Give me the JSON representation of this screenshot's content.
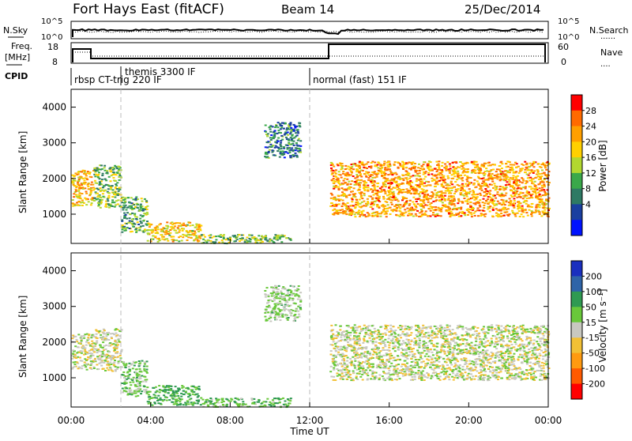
{
  "header": {
    "station": "Fort Hays East (fitACF)",
    "beam": "Beam 14",
    "date": "25/Dec/2014"
  },
  "labels": {
    "nsky": "N.Sky",
    "nsearch": "N.Search",
    "freq": "Freq.",
    "mhz": "[MHz]",
    "nave": "Nave",
    "cpid": "CPID",
    "legend_dots": "......",
    "legend_dots_short": "...."
  },
  "noise_ticks_left": [
    "10^5",
    "10^0"
  ],
  "noise_ticks_right": [
    "10^5",
    "10^0"
  ],
  "freq_ticks": [
    "18",
    "8"
  ],
  "nave_ticks": [
    "60",
    "0"
  ],
  "cpid_segments": [
    {
      "label": "rbsp CT-trig 220 IF",
      "start_hr": 0.0
    },
    {
      "label": "themis 3300 IF",
      "start_hr": 2.5
    },
    {
      "label": "normal (fast) 151 IF",
      "start_hr": 12.0
    }
  ],
  "time_ticks": [
    "00:00",
    "04:00",
    "08:00",
    "12:00",
    "16:00",
    "20:00",
    "00:00"
  ],
  "xlabel": "Time UT",
  "ylabel": "Slant Range [km]",
  "range_ticks": [
    "4000",
    "3000",
    "2000",
    "1000"
  ],
  "power_colorbar": {
    "label": "Power [dB]",
    "ticks": [
      "28",
      "24",
      "20",
      "16",
      "12",
      "8",
      "4"
    ],
    "colors": [
      "#ff0000",
      "#ff6a00",
      "#ff9f00",
      "#ffd000",
      "#b2d830",
      "#3aa84a",
      "#2e7a64",
      "#1a3fa0",
      "#0012ff"
    ]
  },
  "velocity_colorbar": {
    "label": "Velocity [m s⁻¹]",
    "ticks": [
      "200",
      "100",
      "50",
      "15",
      "-15",
      "-50",
      "-100",
      "-200"
    ],
    "colors": [
      "#1a2fbf",
      "#2f64a8",
      "#2f9a52",
      "#69c83a",
      "#c8c8c0",
      "#f2c035",
      "#ff9a10",
      "#ff5a00",
      "#ff0000"
    ]
  },
  "chart_data": {
    "type": "heatmap",
    "x_range_hours": [
      0,
      24
    ],
    "y_range_km": [
      180,
      4500
    ],
    "echo_regions": [
      {
        "name": "",
        "t0": 0.0,
        "t1": 1.1,
        "r0": 1250,
        "r1": 2250,
        "power": 22,
        "velocity": 0
      },
      {
        "name": "",
        "t0": 1.1,
        "t1": 2.5,
        "r0": 1200,
        "r1": 2400,
        "power": 14,
        "velocity": 0
      },
      {
        "name": "",
        "t0": 2.5,
        "t1": 3.8,
        "r0": 500,
        "r1": 1500,
        "power": 12,
        "velocity": 30
      },
      {
        "name": "",
        "t0": 3.8,
        "t1": 6.5,
        "r0": 250,
        "r1": 800,
        "power": 20,
        "velocity": 60
      },
      {
        "name": "",
        "t0": 6.5,
        "t1": 11.0,
        "r0": 200,
        "r1": 450,
        "power": 14,
        "velocity": 40
      },
      {
        "name": "",
        "t0": 9.7,
        "t1": 11.5,
        "r0": 2600,
        "r1": 3600,
        "power": 8,
        "velocity": 20
      },
      {
        "name": "",
        "t0": 13.0,
        "t1": 24.0,
        "r0": 950,
        "r1": 2500,
        "power": 24,
        "velocity": 0
      }
    ]
  }
}
